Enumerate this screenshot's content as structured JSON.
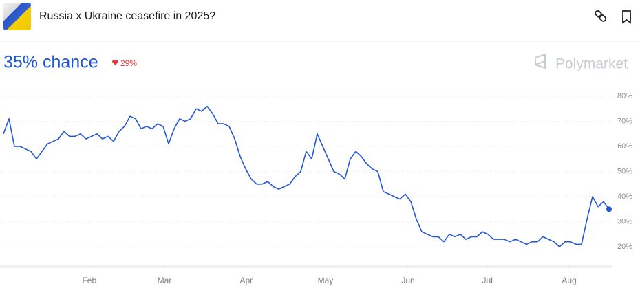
{
  "header": {
    "title": "Russia x Ukraine ceasefire in 2025?"
  },
  "chart_data": {
    "type": "line",
    "subtitle": "35% chance",
    "change": "29%",
    "brand": "Polymarket",
    "series": [
      {
        "color": "#2456d6",
        "values": [
          65,
          71,
          60,
          60,
          59,
          58,
          55,
          58,
          61,
          62,
          63,
          66,
          64,
          64,
          65,
          63,
          64,
          65,
          63,
          64,
          62,
          66,
          68,
          72,
          71,
          67,
          68,
          67,
          69,
          68,
          61,
          67,
          71,
          70,
          71,
          75,
          74,
          76,
          73,
          69,
          69,
          68,
          63,
          56,
          51,
          47,
          45,
          45,
          46,
          44,
          43,
          44,
          45,
          48,
          50,
          58,
          55,
          65,
          60,
          55,
          50,
          49,
          47,
          55,
          58,
          56,
          53,
          51,
          50,
          42,
          41,
          40,
          39,
          41,
          38,
          31,
          26,
          25,
          24,
          24,
          22,
          25,
          24,
          25,
          23,
          24,
          24,
          26,
          25,
          23,
          23,
          23,
          22,
          23,
          22,
          21,
          22,
          22,
          24,
          23,
          22,
          20,
          22,
          22,
          21,
          21,
          31,
          40,
          36,
          38,
          35
        ]
      }
    ],
    "xlim": [
      0,
      110
    ],
    "xticks": [
      {
        "value": 15.6,
        "label": "Feb"
      },
      {
        "value": 29.25,
        "label": "Mar"
      },
      {
        "value": 44.1,
        "label": "Apr"
      },
      {
        "value": 58.5,
        "label": "May"
      },
      {
        "value": 73.5,
        "label": "Jun"
      },
      {
        "value": 87.9,
        "label": "Jul"
      },
      {
        "value": 102.75,
        "label": "Aug"
      }
    ],
    "ylim": [
      12,
      82
    ],
    "yticks": [
      {
        "value": 20,
        "label": "20%"
      },
      {
        "value": 30,
        "label": "30%"
      },
      {
        "value": 40,
        "label": "40%"
      },
      {
        "value": 50,
        "label": "50%"
      },
      {
        "value": 60,
        "label": "60%"
      },
      {
        "value": 70,
        "label": "70%"
      },
      {
        "value": 80,
        "label": "80%"
      }
    ],
    "grid": true
  }
}
